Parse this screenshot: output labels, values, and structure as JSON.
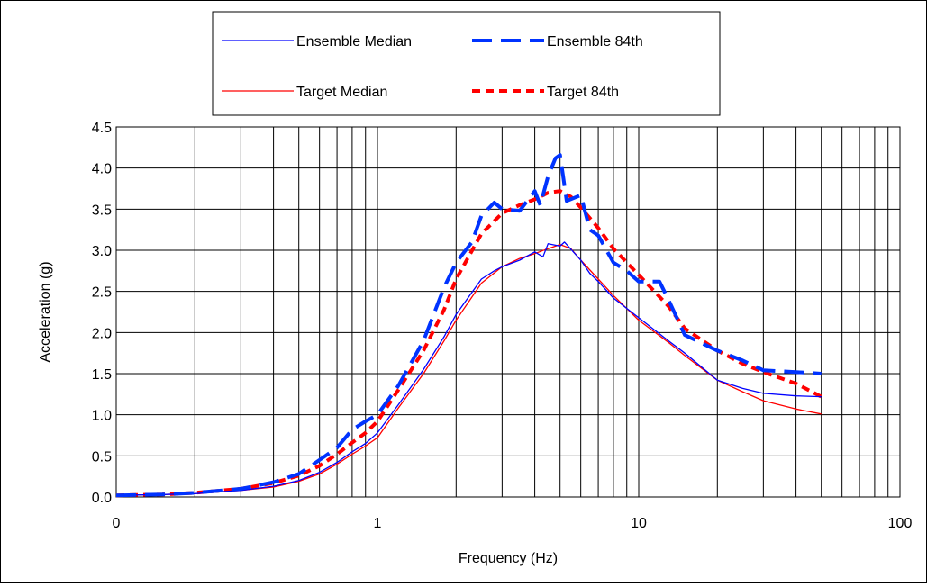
{
  "chart_data": {
    "type": "line",
    "title": "",
    "xlabel": "Frequency (Hz)",
    "ylabel": "Acceleration (g)",
    "x_scale": "log",
    "xlim": [
      0.1,
      100
    ],
    "ylim": [
      0,
      4.5
    ],
    "x_ticks": [
      {
        "value": 0.1,
        "label": "0"
      },
      {
        "value": 1,
        "label": "1"
      },
      {
        "value": 10,
        "label": "10"
      },
      {
        "value": 100,
        "label": "100"
      }
    ],
    "y_ticks": [
      {
        "value": 0,
        "label": "0.0"
      },
      {
        "value": 0.5,
        "label": "0.5"
      },
      {
        "value": 1,
        "label": "1.0"
      },
      {
        "value": 1.5,
        "label": "1.5"
      },
      {
        "value": 2,
        "label": "2.0"
      },
      {
        "value": 2.5,
        "label": "2.5"
      },
      {
        "value": 3,
        "label": "3.0"
      },
      {
        "value": 3.5,
        "label": "3.5"
      },
      {
        "value": 4,
        "label": "4.0"
      },
      {
        "value": 4.5,
        "label": "4.5"
      }
    ],
    "grid": {
      "horizontal": true,
      "vertical_minor": true
    },
    "legend_position": "top-center",
    "series": [
      {
        "name": "Ensemble Median",
        "color": "#0000ff",
        "style": "solid",
        "points": [
          [
            0.1,
            0.02
          ],
          [
            0.15,
            0.03
          ],
          [
            0.2,
            0.04
          ],
          [
            0.3,
            0.08
          ],
          [
            0.4,
            0.13
          ],
          [
            0.5,
            0.2
          ],
          [
            0.6,
            0.3
          ],
          [
            0.7,
            0.42
          ],
          [
            0.8,
            0.55
          ],
          [
            0.9,
            0.65
          ],
          [
            1.0,
            0.78
          ],
          [
            1.2,
            1.12
          ],
          [
            1.5,
            1.55
          ],
          [
            1.8,
            1.95
          ],
          [
            2.0,
            2.22
          ],
          [
            2.5,
            2.65
          ],
          [
            2.8,
            2.75
          ],
          [
            3.0,
            2.8
          ],
          [
            3.5,
            2.88
          ],
          [
            4.0,
            2.98
          ],
          [
            4.3,
            2.92
          ],
          [
            4.5,
            3.08
          ],
          [
            5.0,
            3.05
          ],
          [
            5.2,
            3.1
          ],
          [
            6.0,
            2.88
          ],
          [
            6.5,
            2.72
          ],
          [
            7.0,
            2.62
          ],
          [
            8.0,
            2.42
          ],
          [
            10,
            2.18
          ],
          [
            13,
            1.9
          ],
          [
            15,
            1.75
          ],
          [
            20,
            1.42
          ],
          [
            25,
            1.32
          ],
          [
            30,
            1.26
          ],
          [
            40,
            1.23
          ],
          [
            50,
            1.22
          ]
        ]
      },
      {
        "name": "Ensemble 84th",
        "color": "#0033ff",
        "style": "dash",
        "points": [
          [
            0.1,
            0.02
          ],
          [
            0.15,
            0.03
          ],
          [
            0.2,
            0.05
          ],
          [
            0.3,
            0.1
          ],
          [
            0.4,
            0.18
          ],
          [
            0.5,
            0.28
          ],
          [
            0.6,
            0.45
          ],
          [
            0.7,
            0.6
          ],
          [
            0.8,
            0.82
          ],
          [
            0.9,
            0.92
          ],
          [
            1.0,
            1.0
          ],
          [
            1.2,
            1.35
          ],
          [
            1.5,
            1.9
          ],
          [
            1.8,
            2.55
          ],
          [
            2.0,
            2.85
          ],
          [
            2.3,
            3.1
          ],
          [
            2.5,
            3.42
          ],
          [
            2.8,
            3.58
          ],
          [
            3.0,
            3.5
          ],
          [
            3.5,
            3.48
          ],
          [
            4.0,
            3.72
          ],
          [
            4.2,
            3.55
          ],
          [
            4.5,
            3.9
          ],
          [
            4.8,
            4.12
          ],
          [
            5.0,
            4.16
          ],
          [
            5.3,
            3.6
          ],
          [
            6.0,
            3.67
          ],
          [
            6.5,
            3.25
          ],
          [
            7.0,
            3.18
          ],
          [
            8.0,
            2.85
          ],
          [
            9.0,
            2.75
          ],
          [
            10,
            2.62
          ],
          [
            12,
            2.62
          ],
          [
            13,
            2.4
          ],
          [
            15,
            1.97
          ],
          [
            20,
            1.78
          ],
          [
            25,
            1.66
          ],
          [
            30,
            1.54
          ],
          [
            40,
            1.52
          ],
          [
            50,
            1.5
          ]
        ]
      },
      {
        "name": "Target Median",
        "color": "#ff0000",
        "style": "solid",
        "points": [
          [
            0.1,
            0.02
          ],
          [
            0.15,
            0.03
          ],
          [
            0.2,
            0.04
          ],
          [
            0.3,
            0.08
          ],
          [
            0.4,
            0.12
          ],
          [
            0.5,
            0.19
          ],
          [
            0.6,
            0.28
          ],
          [
            0.7,
            0.4
          ],
          [
            0.8,
            0.52
          ],
          [
            0.9,
            0.62
          ],
          [
            1.0,
            0.72
          ],
          [
            1.2,
            1.08
          ],
          [
            1.5,
            1.5
          ],
          [
            1.8,
            1.9
          ],
          [
            2.0,
            2.15
          ],
          [
            2.5,
            2.6
          ],
          [
            3.0,
            2.8
          ],
          [
            3.5,
            2.9
          ],
          [
            4.0,
            2.96
          ],
          [
            4.5,
            3.02
          ],
          [
            5.0,
            3.07
          ],
          [
            5.5,
            3.02
          ],
          [
            6.0,
            2.88
          ],
          [
            7.0,
            2.65
          ],
          [
            8.0,
            2.45
          ],
          [
            10,
            2.15
          ],
          [
            13,
            1.88
          ],
          [
            15,
            1.72
          ],
          [
            20,
            1.42
          ],
          [
            25,
            1.28
          ],
          [
            30,
            1.17
          ],
          [
            40,
            1.07
          ],
          [
            50,
            1.01
          ]
        ]
      },
      {
        "name": "Target 84th",
        "color": "#ff0000",
        "style": "dot",
        "points": [
          [
            0.1,
            0.02
          ],
          [
            0.15,
            0.03
          ],
          [
            0.2,
            0.05
          ],
          [
            0.3,
            0.1
          ],
          [
            0.4,
            0.17
          ],
          [
            0.5,
            0.26
          ],
          [
            0.6,
            0.38
          ],
          [
            0.7,
            0.52
          ],
          [
            0.8,
            0.66
          ],
          [
            0.9,
            0.78
          ],
          [
            1.0,
            0.92
          ],
          [
            1.2,
            1.3
          ],
          [
            1.5,
            1.78
          ],
          [
            1.8,
            2.28
          ],
          [
            2.0,
            2.65
          ],
          [
            2.5,
            3.2
          ],
          [
            3.0,
            3.45
          ],
          [
            3.5,
            3.55
          ],
          [
            4.0,
            3.62
          ],
          [
            4.5,
            3.7
          ],
          [
            5.0,
            3.72
          ],
          [
            5.5,
            3.65
          ],
          [
            6.0,
            3.52
          ],
          [
            7.0,
            3.27
          ],
          [
            8.0,
            3.02
          ],
          [
            10,
            2.7
          ],
          [
            13,
            2.32
          ],
          [
            15,
            2.05
          ],
          [
            20,
            1.78
          ],
          [
            25,
            1.62
          ],
          [
            30,
            1.52
          ],
          [
            40,
            1.38
          ],
          [
            50,
            1.22
          ]
        ]
      }
    ]
  }
}
